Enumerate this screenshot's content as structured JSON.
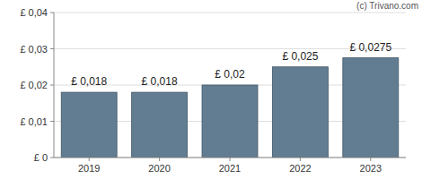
{
  "chart_data": {
    "type": "bar",
    "categories": [
      "2019",
      "2020",
      "2021",
      "2022",
      "2023"
    ],
    "values": [
      0.018,
      0.018,
      0.02,
      0.025,
      0.0275
    ],
    "value_labels": [
      "£ 0,018",
      "£ 0,018",
      "£ 0,02",
      "£ 0,025",
      "£ 0,0275"
    ],
    "color": "#627d91",
    "ylim": [
      0,
      0.04
    ],
    "yticks": [
      {
        "value": 0,
        "label": "£ 0"
      },
      {
        "value": 0.01,
        "label": "£ 0,01"
      },
      {
        "value": 0.02,
        "label": "£ 0,02"
      },
      {
        "value": 0.03,
        "label": "£ 0,03"
      },
      {
        "value": 0.04,
        "label": "£ 0,04"
      }
    ],
    "grid": true,
    "data_labels": true,
    "annotations": [
      "(c) Trivano.com"
    ]
  }
}
